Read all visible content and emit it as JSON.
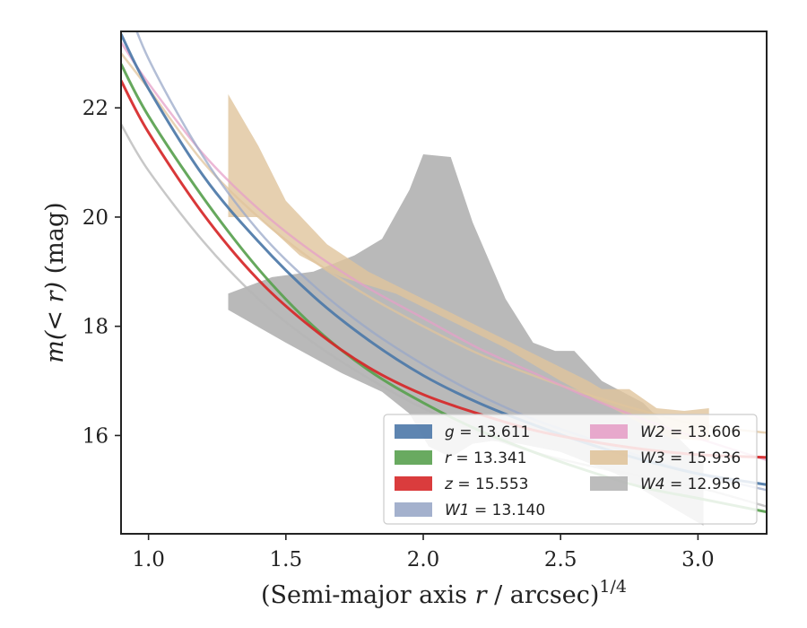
{
  "chart_data": {
    "type": "line",
    "title": "",
    "xlabel_main": "(Semi-major axis ",
    "xlabel_var": "r",
    "xlabel_unit": " / arcsec)",
    "xlabel_sup": "1/4",
    "ylabel_main": "m",
    "ylabel_var": "(< r)",
    "ylabel_unit": " (mag)",
    "xlim": [
      0.9,
      3.25
    ],
    "ylim": [
      23.4,
      14.2
    ],
    "y_inverted": true,
    "xticks": [
      1.0,
      1.5,
      2.0,
      2.5,
      3.0
    ],
    "xtick_labels": [
      "1.0",
      "1.5",
      "2.0",
      "2.5",
      "3.0"
    ],
    "yticks": [
      16,
      18,
      20,
      22
    ],
    "ytick_labels": [
      "16",
      "18",
      "20",
      "22"
    ],
    "grid": false,
    "legend_position": "lower-right",
    "legend": [
      {
        "var": "g",
        "eq": " = 13.611",
        "color": "#4c78a8"
      },
      {
        "var": "r",
        "eq": " = 13.341",
        "color": "#59a14f"
      },
      {
        "var": "z",
        "eq": " = 15.553",
        "color": "#d62728"
      },
      {
        "var": "W1",
        "eq": " = 13.140",
        "color": "#9aa8c8"
      },
      {
        "var": "W2",
        "eq": " = 13.606",
        "color": "#e6a0c8"
      },
      {
        "var": "W3",
        "eq": " = 15.936",
        "color": "#e0c49c"
      },
      {
        "var": "W4",
        "eq": " = 12.956",
        "color": "#b5b5b5"
      }
    ],
    "series": [
      {
        "name": "W4",
        "color": "#b5b5b5",
        "band_upper": [
          [
            1.29,
            18.3
          ],
          [
            1.5,
            17.7
          ],
          [
            1.7,
            17.15
          ],
          [
            1.85,
            16.8
          ],
          [
            1.95,
            16.4
          ],
          [
            2.02,
            15.8
          ],
          [
            2.1,
            15.6
          ],
          [
            2.18,
            15.85
          ],
          [
            2.25,
            15.9
          ],
          [
            2.35,
            15.85
          ],
          [
            2.5,
            15.7
          ],
          [
            2.7,
            15.3
          ],
          [
            2.9,
            14.7
          ],
          [
            3.02,
            14.35
          ]
        ],
        "band_lower": [
          [
            1.29,
            18.6
          ],
          [
            1.45,
            18.9
          ],
          [
            1.6,
            19.0
          ],
          [
            1.75,
            19.3
          ],
          [
            1.85,
            19.6
          ],
          [
            1.95,
            20.5
          ],
          [
            2.0,
            21.15
          ],
          [
            2.1,
            21.1
          ],
          [
            2.18,
            19.9
          ],
          [
            2.3,
            18.5
          ],
          [
            2.4,
            17.7
          ],
          [
            2.48,
            17.55
          ],
          [
            2.55,
            17.55
          ],
          [
            2.65,
            17.0
          ],
          [
            2.8,
            16.6
          ],
          [
            3.02,
            15.5
          ]
        ],
        "curve": [
          [
            0.9,
            21.7
          ],
          [
            1.0,
            20.85
          ],
          [
            1.2,
            19.55
          ],
          [
            1.4,
            18.5
          ],
          [
            1.6,
            17.7
          ],
          [
            1.8,
            17.05
          ],
          [
            2.0,
            16.5
          ],
          [
            2.2,
            16.05
          ],
          [
            2.4,
            15.7
          ],
          [
            2.6,
            15.45
          ],
          [
            2.8,
            15.25
          ],
          [
            3.0,
            15.05
          ],
          [
            3.25,
            14.7
          ]
        ]
      },
      {
        "name": "W3",
        "color": "#e0c49c",
        "band_upper": [
          [
            1.29,
            20.0
          ],
          [
            1.4,
            20.0
          ],
          [
            1.55,
            19.3
          ],
          [
            1.7,
            18.9
          ],
          [
            1.9,
            18.6
          ],
          [
            2.1,
            18.1
          ],
          [
            2.3,
            17.6
          ],
          [
            2.5,
            17.0
          ],
          [
            2.65,
            16.6
          ],
          [
            2.8,
            16.2
          ],
          [
            2.9,
            15.95
          ],
          [
            3.04,
            15.9
          ]
        ],
        "band_lower": [
          [
            1.29,
            22.25
          ],
          [
            1.4,
            21.3
          ],
          [
            1.5,
            20.3
          ],
          [
            1.65,
            19.5
          ],
          [
            1.8,
            19.0
          ],
          [
            2.0,
            18.5
          ],
          [
            2.2,
            18.0
          ],
          [
            2.4,
            17.5
          ],
          [
            2.6,
            17.0
          ],
          [
            2.65,
            16.85
          ],
          [
            2.75,
            16.85
          ],
          [
            2.85,
            16.5
          ],
          [
            2.95,
            16.45
          ],
          [
            3.04,
            16.5
          ]
        ],
        "curve": [
          [
            0.9,
            23.0
          ],
          [
            1.0,
            22.35
          ],
          [
            1.2,
            21.0
          ],
          [
            1.4,
            20.0
          ],
          [
            1.6,
            19.2
          ],
          [
            1.8,
            18.55
          ],
          [
            2.0,
            18.0
          ],
          [
            2.2,
            17.5
          ],
          [
            2.4,
            17.1
          ],
          [
            2.6,
            16.75
          ],
          [
            2.8,
            16.45
          ],
          [
            3.0,
            16.2
          ],
          [
            3.25,
            16.05
          ]
        ]
      },
      {
        "name": "W2",
        "color": "#e6a0c8",
        "curve": [
          [
            0.9,
            23.2
          ],
          [
            1.0,
            22.45
          ],
          [
            1.2,
            21.15
          ],
          [
            1.4,
            20.15
          ],
          [
            1.6,
            19.35
          ],
          [
            1.8,
            18.7
          ],
          [
            2.0,
            18.15
          ],
          [
            2.2,
            17.6
          ],
          [
            2.4,
            17.15
          ],
          [
            2.6,
            16.7
          ],
          [
            2.8,
            16.3
          ],
          [
            3.0,
            15.95
          ],
          [
            3.25,
            15.55
          ]
        ]
      },
      {
        "name": "W1",
        "color": "#9aa8c8",
        "curve": [
          [
            0.9,
            24.2
          ],
          [
            1.0,
            22.9
          ],
          [
            1.2,
            21.1
          ],
          [
            1.4,
            19.75
          ],
          [
            1.6,
            18.75
          ],
          [
            1.8,
            17.95
          ],
          [
            2.0,
            17.3
          ],
          [
            2.2,
            16.75
          ],
          [
            2.4,
            16.3
          ],
          [
            2.6,
            15.95
          ],
          [
            2.8,
            15.6
          ],
          [
            3.0,
            15.3
          ],
          [
            3.25,
            15.0
          ]
        ]
      },
      {
        "name": "g",
        "color": "#4c78a8",
        "curve": [
          [
            0.9,
            23.35
          ],
          [
            1.0,
            22.35
          ],
          [
            1.2,
            20.75
          ],
          [
            1.4,
            19.55
          ],
          [
            1.6,
            18.55
          ],
          [
            1.8,
            17.75
          ],
          [
            2.0,
            17.1
          ],
          [
            2.2,
            16.6
          ],
          [
            2.4,
            16.2
          ],
          [
            2.6,
            15.85
          ],
          [
            2.8,
            15.55
          ],
          [
            3.0,
            15.3
          ],
          [
            3.25,
            15.1
          ]
        ]
      },
      {
        "name": "r",
        "color": "#59a14f",
        "curve": [
          [
            0.9,
            22.8
          ],
          [
            1.0,
            21.85
          ],
          [
            1.2,
            20.35
          ],
          [
            1.4,
            19.05
          ],
          [
            1.6,
            18.0
          ],
          [
            1.8,
            17.2
          ],
          [
            2.0,
            16.6
          ],
          [
            2.2,
            16.1
          ],
          [
            2.4,
            15.7
          ],
          [
            2.6,
            15.35
          ],
          [
            2.8,
            15.05
          ],
          [
            3.0,
            14.85
          ],
          [
            3.25,
            14.6
          ]
        ]
      },
      {
        "name": "z",
        "color": "#d62728",
        "curve": [
          [
            0.9,
            22.5
          ],
          [
            1.0,
            21.55
          ],
          [
            1.2,
            20.05
          ],
          [
            1.4,
            18.85
          ],
          [
            1.6,
            17.95
          ],
          [
            1.8,
            17.25
          ],
          [
            2.0,
            16.75
          ],
          [
            2.2,
            16.4
          ],
          [
            2.4,
            16.1
          ],
          [
            2.6,
            15.9
          ],
          [
            2.8,
            15.75
          ],
          [
            3.0,
            15.65
          ],
          [
            3.25,
            15.6
          ]
        ]
      }
    ]
  }
}
